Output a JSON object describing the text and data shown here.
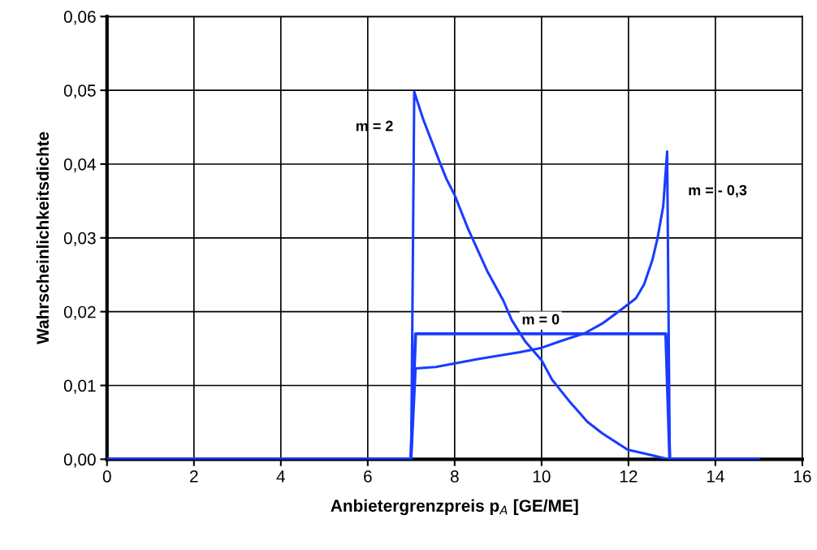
{
  "chart_data": {
    "type": "line",
    "xlabel": "Anbietergrenzpreis p$_{A}$ [GE/ME]",
    "ylabel": "Wahrscheinlichkeitsdichte",
    "xlim": [
      0,
      16
    ],
    "xticks": [
      0,
      2,
      4,
      6,
      8,
      10,
      12,
      14,
      16
    ],
    "ylim": [
      0,
      0.06
    ],
    "yticks": [
      {
        "value": 0,
        "label": "0,00"
      },
      {
        "value": 0.01,
        "label": "0,01"
      },
      {
        "value": 0.02,
        "label": "0,02"
      },
      {
        "value": 0.03,
        "label": "0,03"
      },
      {
        "value": 0.04,
        "label": "0,04"
      },
      {
        "value": 0.05,
        "label": "0,05"
      },
      {
        "value": 0.06,
        "label": "0,06"
      }
    ],
    "grid": true,
    "legend": false,
    "marker": "none",
    "line_style": "solid",
    "series": [
      {
        "name": "m = 2",
        "color": "#1a3cff",
        "x": [
          0,
          7.0,
          7.07,
          7.28,
          7.66,
          7.81,
          8.0,
          8.31,
          8.75,
          9.12,
          9.31,
          9.62,
          10.0,
          10.24,
          10.62,
          11.05,
          11.4,
          11.98,
          12.49,
          12.92,
          15.0
        ],
        "values": [
          0,
          0,
          0.0498,
          0.046,
          0.0402,
          0.038,
          0.0358,
          0.0312,
          0.0255,
          0.0215,
          0.0189,
          0.016,
          0.0134,
          0.0108,
          0.008,
          0.0051,
          0.0035,
          0.0013,
          0.0006,
          0,
          0
        ]
      },
      {
        "name": "m = - 0,3",
        "color": "#1a3cff",
        "x": [
          0,
          7.0,
          7.1,
          7.56,
          8.56,
          9.5,
          10.0,
          10.43,
          11.0,
          11.4,
          11.86,
          12.17,
          12.36,
          12.55,
          12.67,
          12.8,
          12.89,
          12.95,
          15.0
        ],
        "values": [
          0,
          0,
          0.0123,
          0.0125,
          0.0136,
          0.0145,
          0.0151,
          0.016,
          0.0171,
          0.0184,
          0.0204,
          0.0218,
          0.0237,
          0.027,
          0.03,
          0.0343,
          0.0417,
          0,
          0
        ]
      },
      {
        "name": "m = 0",
        "color": "#1a3cff",
        "x": [
          0,
          6.99,
          7.1,
          12.86,
          12.95,
          15.0
        ],
        "values": [
          0,
          0,
          0.017,
          0.017,
          0,
          0
        ]
      }
    ]
  }
}
